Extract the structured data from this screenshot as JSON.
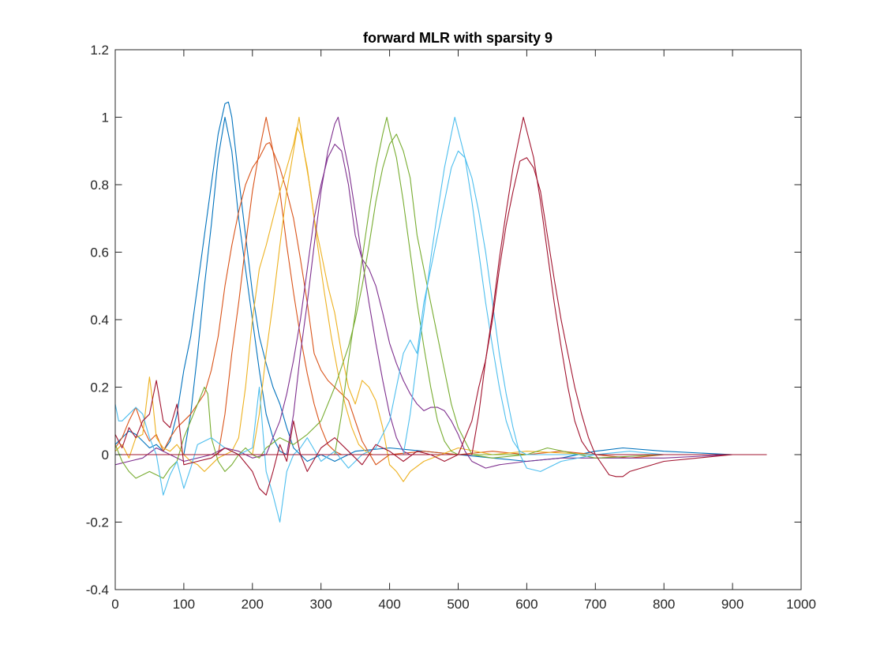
{
  "chart_data": {
    "type": "line",
    "title": "forward MLR with sparsity 9",
    "xlabel": "",
    "ylabel": "",
    "xlim": [
      0,
      1000
    ],
    "ylim": [
      -0.4,
      1.2
    ],
    "xticks": [
      0,
      100,
      200,
      300,
      400,
      500,
      600,
      700,
      800,
      900,
      1000
    ],
    "xtick_labels": [
      "0",
      "100",
      "200",
      "300",
      "400",
      "500",
      "600",
      "700",
      "800",
      "900",
      "1000"
    ],
    "yticks": [
      -0.4,
      -0.2,
      0,
      0.2,
      0.4,
      0.6,
      0.8,
      1,
      1.2
    ],
    "ytick_labels": [
      "-0.4",
      "-0.2",
      "0",
      "0.2",
      "0.4",
      "0.6",
      "0.8",
      "1",
      "1.2"
    ],
    "grid": false,
    "box": true,
    "series": [
      {
        "color": "#0072BD",
        "style": "target",
        "x": [
          0,
          50,
          100,
          110,
          120,
          130,
          140,
          150,
          160,
          170,
          180,
          190,
          200,
          210,
          220,
          230,
          240,
          250,
          260,
          270,
          280,
          950
        ],
        "y": [
          0,
          0,
          0,
          0.12,
          0.3,
          0.5,
          0.68,
          0.88,
          1.0,
          0.9,
          0.7,
          0.55,
          0.4,
          0.25,
          0.12,
          0.05,
          0.01,
          0,
          0,
          0,
          0,
          0
        ]
      },
      {
        "color": "#0072BD",
        "style": "estimate",
        "x": [
          0,
          10,
          20,
          30,
          40,
          50,
          60,
          70,
          80,
          90,
          100,
          110,
          120,
          130,
          140,
          150,
          160,
          165,
          170,
          180,
          190,
          200,
          210,
          220,
          230,
          240,
          250,
          260,
          280,
          300,
          320,
          350,
          400,
          450,
          500,
          550,
          600,
          650,
          700,
          740,
          800,
          900,
          950
        ],
        "y": [
          0.03,
          0.05,
          0.07,
          0.06,
          0.04,
          0.02,
          0.03,
          0.01,
          0.04,
          0.12,
          0.25,
          0.35,
          0.5,
          0.65,
          0.8,
          0.95,
          1.04,
          1.045,
          1.0,
          0.82,
          0.65,
          0.48,
          0.35,
          0.27,
          0.2,
          0.15,
          0.08,
          0.02,
          -0.02,
          0.0,
          -0.02,
          0.01,
          0.02,
          0.01,
          0.0,
          -0.01,
          -0.02,
          -0.01,
          0.01,
          0.02,
          0.01,
          0.0,
          0.0
        ]
      },
      {
        "color": "#D95319",
        "style": "target",
        "x": [
          0,
          150,
          160,
          170,
          180,
          190,
          200,
          210,
          220,
          230,
          240,
          250,
          260,
          270,
          280,
          290,
          300,
          310,
          320,
          330,
          340,
          950
        ],
        "y": [
          0,
          0,
          0.12,
          0.3,
          0.45,
          0.62,
          0.78,
          0.9,
          1.0,
          0.9,
          0.78,
          0.62,
          0.48,
          0.35,
          0.24,
          0.15,
          0.08,
          0.03,
          0.01,
          0,
          0,
          0
        ]
      },
      {
        "color": "#D95319",
        "style": "estimate",
        "x": [
          0,
          10,
          20,
          30,
          40,
          50,
          60,
          70,
          80,
          90,
          100,
          110,
          120,
          130,
          140,
          150,
          160,
          170,
          180,
          190,
          200,
          210,
          220,
          225,
          230,
          240,
          250,
          260,
          270,
          280,
          290,
          300,
          310,
          320,
          330,
          340,
          350,
          360,
          380,
          400,
          450,
          500,
          550,
          600,
          650,
          700,
          750,
          800,
          900,
          950
        ],
        "y": [
          0.02,
          0.05,
          0.1,
          0.14,
          0.08,
          0.04,
          0.06,
          0.01,
          0.05,
          0.08,
          0.1,
          0.12,
          0.15,
          0.18,
          0.25,
          0.35,
          0.5,
          0.62,
          0.72,
          0.8,
          0.85,
          0.88,
          0.92,
          0.925,
          0.9,
          0.85,
          0.78,
          0.7,
          0.58,
          0.45,
          0.3,
          0.25,
          0.22,
          0.2,
          0.18,
          0.16,
          0.1,
          0.04,
          -0.03,
          0.0,
          0.01,
          0.0,
          0.01,
          0.0,
          0.01,
          0.0,
          -0.01,
          0.0,
          0.0,
          0.0
        ]
      },
      {
        "color": "#EDB120",
        "style": "target",
        "x": [
          0,
          200,
          210,
          220,
          230,
          240,
          250,
          260,
          268,
          275,
          285,
          295,
          305,
          315,
          325,
          335,
          345,
          355,
          365,
          375,
          385,
          950
        ],
        "y": [
          0,
          0,
          0.12,
          0.3,
          0.45,
          0.62,
          0.78,
          0.9,
          1.0,
          0.9,
          0.78,
          0.62,
          0.48,
          0.35,
          0.24,
          0.15,
          0.08,
          0.03,
          0.01,
          0,
          0,
          0
        ]
      },
      {
        "color": "#EDB120",
        "style": "estimate",
        "x": [
          0,
          10,
          20,
          30,
          40,
          50,
          55,
          60,
          70,
          80,
          90,
          100,
          110,
          120,
          130,
          140,
          150,
          160,
          170,
          180,
          190,
          200,
          210,
          220,
          230,
          240,
          250,
          260,
          265,
          270,
          280,
          290,
          300,
          310,
          320,
          330,
          340,
          350,
          360,
          370,
          380,
          390,
          400,
          410,
          420,
          430,
          450,
          500,
          550,
          600,
          700,
          800,
          950
        ],
        "y": [
          0.01,
          0.03,
          -0.01,
          0.05,
          0.06,
          0.23,
          0.15,
          0.05,
          0.02,
          0.01,
          0.03,
          0.0,
          -0.02,
          -0.03,
          -0.05,
          -0.03,
          -0.01,
          0.0,
          0.01,
          0.05,
          0.2,
          0.4,
          0.55,
          0.62,
          0.7,
          0.78,
          0.85,
          0.92,
          0.97,
          0.95,
          0.85,
          0.7,
          0.6,
          0.5,
          0.42,
          0.3,
          0.2,
          0.15,
          0.22,
          0.2,
          0.16,
          0.08,
          -0.03,
          -0.05,
          -0.08,
          -0.05,
          -0.02,
          0.02,
          0.0,
          0.01,
          0.0,
          0.0,
          0.0
        ]
      },
      {
        "color": "#7E2F8E",
        "style": "target",
        "x": [
          0,
          250,
          260,
          270,
          280,
          290,
          300,
          310,
          320,
          325,
          330,
          340,
          350,
          360,
          370,
          380,
          390,
          400,
          410,
          420,
          430,
          950
        ],
        "y": [
          0,
          0,
          0.12,
          0.3,
          0.45,
          0.62,
          0.78,
          0.9,
          0.98,
          1.0,
          0.95,
          0.85,
          0.72,
          0.58,
          0.45,
          0.33,
          0.22,
          0.12,
          0.05,
          0.01,
          0,
          0
        ]
      },
      {
        "color": "#7E2F8E",
        "style": "estimate",
        "x": [
          0,
          20,
          40,
          60,
          80,
          100,
          120,
          140,
          160,
          180,
          200,
          220,
          230,
          240,
          250,
          260,
          270,
          280,
          290,
          300,
          310,
          320,
          330,
          340,
          350,
          360,
          370,
          380,
          390,
          400,
          410,
          420,
          430,
          440,
          450,
          460,
          470,
          480,
          490,
          500,
          510,
          520,
          540,
          560,
          600,
          650,
          700,
          750,
          800,
          900,
          950
        ],
        "y": [
          -0.03,
          -0.02,
          -0.01,
          0.02,
          0.0,
          -0.02,
          -0.01,
          0.0,
          0.02,
          0.01,
          -0.01,
          0.0,
          0.05,
          0.1,
          0.18,
          0.28,
          0.4,
          0.55,
          0.7,
          0.8,
          0.88,
          0.92,
          0.9,
          0.8,
          0.65,
          0.58,
          0.55,
          0.5,
          0.42,
          0.33,
          0.27,
          0.22,
          0.18,
          0.15,
          0.13,
          0.14,
          0.14,
          0.13,
          0.1,
          0.06,
          0.01,
          -0.02,
          -0.04,
          -0.03,
          -0.02,
          -0.01,
          -0.01,
          -0.01,
          -0.01,
          0.0,
          0.0
        ]
      },
      {
        "color": "#77AC30",
        "style": "target",
        "x": [
          0,
          320,
          330,
          340,
          350,
          360,
          370,
          380,
          390,
          396,
          400,
          410,
          420,
          430,
          440,
          450,
          460,
          470,
          480,
          490,
          500,
          950
        ],
        "y": [
          0,
          0,
          0.12,
          0.28,
          0.42,
          0.58,
          0.72,
          0.85,
          0.95,
          1.0,
          0.96,
          0.88,
          0.75,
          0.6,
          0.45,
          0.32,
          0.2,
          0.1,
          0.04,
          0.01,
          0,
          0
        ]
      },
      {
        "color": "#77AC30",
        "style": "estimate",
        "x": [
          0,
          10,
          20,
          30,
          40,
          50,
          60,
          70,
          80,
          90,
          100,
          110,
          120,
          130,
          135,
          140,
          150,
          160,
          170,
          180,
          190,
          200,
          210,
          220,
          240,
          260,
          280,
          300,
          320,
          340,
          350,
          360,
          370,
          380,
          390,
          400,
          410,
          420,
          430,
          440,
          450,
          460,
          470,
          480,
          490,
          500,
          520,
          550,
          600,
          630,
          700,
          800,
          950
        ],
        "y": [
          0.03,
          -0.02,
          -0.05,
          -0.07,
          -0.06,
          -0.05,
          -0.06,
          -0.07,
          -0.04,
          -0.02,
          0.05,
          0.1,
          0.15,
          0.2,
          0.18,
          0.05,
          -0.02,
          -0.05,
          -0.03,
          0.0,
          0.02,
          0.0,
          -0.01,
          0.02,
          0.05,
          0.03,
          0.06,
          0.1,
          0.2,
          0.32,
          0.4,
          0.5,
          0.62,
          0.75,
          0.85,
          0.92,
          0.95,
          0.9,
          0.82,
          0.65,
          0.55,
          0.45,
          0.35,
          0.25,
          0.15,
          0.08,
          0.0,
          -0.01,
          0.0,
          0.02,
          -0.01,
          0.0,
          0.0
        ]
      },
      {
        "color": "#4DBEEE",
        "style": "target",
        "x": [
          0,
          420,
          430,
          440,
          450,
          460,
          470,
          480,
          490,
          495,
          500,
          510,
          520,
          530,
          540,
          550,
          560,
          570,
          580,
          590,
          600,
          950
        ],
        "y": [
          0,
          0,
          0.12,
          0.28,
          0.42,
          0.58,
          0.72,
          0.85,
          0.95,
          1.0,
          0.96,
          0.88,
          0.75,
          0.6,
          0.45,
          0.32,
          0.2,
          0.1,
          0.04,
          0.01,
          0,
          0
        ]
      },
      {
        "color": "#4DBEEE",
        "style": "estimate",
        "x": [
          0,
          5,
          10,
          20,
          30,
          40,
          50,
          60,
          70,
          80,
          90,
          100,
          110,
          120,
          140,
          160,
          180,
          200,
          210,
          220,
          230,
          240,
          250,
          260,
          270,
          280,
          300,
          320,
          340,
          360,
          380,
          400,
          420,
          430,
          440,
          450,
          460,
          470,
          480,
          490,
          500,
          510,
          520,
          530,
          540,
          550,
          560,
          570,
          580,
          590,
          600,
          620,
          650,
          700,
          750,
          800,
          900,
          950
        ],
        "y": [
          0.15,
          0.1,
          0.1,
          0.12,
          0.14,
          0.12,
          0.05,
          0.0,
          -0.12,
          -0.06,
          -0.02,
          -0.1,
          -0.04,
          0.03,
          0.05,
          0.02,
          0.0,
          0.02,
          0.2,
          -0.05,
          -0.12,
          -0.2,
          -0.05,
          0.0,
          0.02,
          0.05,
          -0.02,
          0.01,
          -0.04,
          0.0,
          0.02,
          0.1,
          0.3,
          0.34,
          0.3,
          0.45,
          0.55,
          0.65,
          0.75,
          0.85,
          0.9,
          0.88,
          0.82,
          0.72,
          0.6,
          0.45,
          0.3,
          0.18,
          0.08,
          0.0,
          -0.04,
          -0.05,
          -0.02,
          0.0,
          0.01,
          0.0,
          0.0,
          0.0
        ]
      },
      {
        "color": "#A2142F",
        "style": "target",
        "x": [
          0,
          520,
          530,
          540,
          550,
          560,
          570,
          580,
          590,
          595,
          600,
          610,
          620,
          630,
          640,
          650,
          660,
          670,
          680,
          690,
          700,
          710,
          950
        ],
        "y": [
          0,
          0,
          0.12,
          0.28,
          0.42,
          0.58,
          0.72,
          0.85,
          0.95,
          1.0,
          0.96,
          0.88,
          0.75,
          0.6,
          0.45,
          0.32,
          0.2,
          0.1,
          0.04,
          0.01,
          0,
          0,
          0
        ]
      },
      {
        "color": "#A2142F",
        "style": "estimate",
        "x": [
          0,
          10,
          20,
          30,
          40,
          50,
          60,
          70,
          80,
          90,
          100,
          120,
          140,
          160,
          180,
          200,
          210,
          220,
          230,
          240,
          250,
          260,
          270,
          280,
          300,
          320,
          340,
          360,
          380,
          400,
          420,
          440,
          460,
          480,
          500,
          520,
          530,
          540,
          550,
          560,
          570,
          580,
          590,
          600,
          610,
          620,
          630,
          640,
          650,
          660,
          670,
          680,
          690,
          700,
          710,
          720,
          730,
          740,
          750,
          800,
          900,
          950
        ],
        "y": [
          0.06,
          0.02,
          0.08,
          0.05,
          0.1,
          0.12,
          0.22,
          0.1,
          0.08,
          0.15,
          -0.03,
          -0.02,
          -0.01,
          0.02,
          0.0,
          -0.05,
          -0.1,
          -0.12,
          -0.05,
          0.03,
          -0.02,
          0.1,
          0.0,
          -0.05,
          0.02,
          0.05,
          0.01,
          -0.03,
          0.03,
          0.01,
          -0.02,
          0.01,
          0.0,
          -0.02,
          0.0,
          0.1,
          0.2,
          0.28,
          0.4,
          0.55,
          0.68,
          0.78,
          0.87,
          0.88,
          0.85,
          0.78,
          0.65,
          0.52,
          0.4,
          0.3,
          0.2,
          0.12,
          0.05,
          0.0,
          -0.03,
          -0.06,
          -0.065,
          -0.065,
          -0.05,
          -0.02,
          0.0,
          0.0
        ]
      }
    ]
  }
}
